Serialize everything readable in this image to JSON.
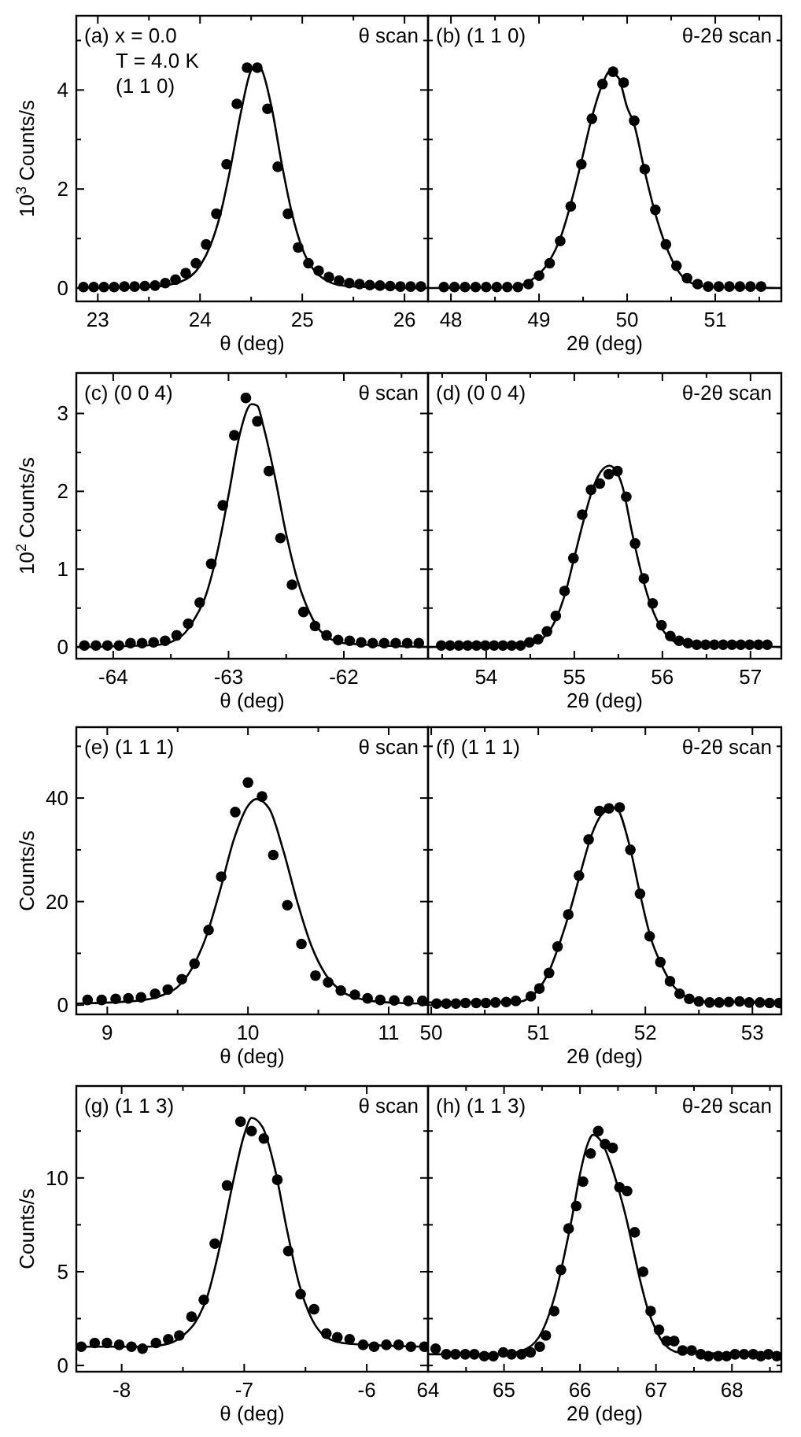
{
  "chart_data": [
    {
      "type": "scatter",
      "xlabel": "θ (deg)",
      "ylabel": "10$^{3}$ Counts/s",
      "annotations": [
        "(a) x = 0.0",
        "T = 4.0 K",
        "(1 1 0)",
        "θ scan"
      ],
      "xlim": [
        22.79,
        26.23
      ],
      "ylim": [
        -0.27,
        5.5
      ],
      "xticks": [
        23,
        {
          "value": 23.5,
          "label": null
        },
        24,
        {
          "value": 24.5,
          "label": null
        },
        25,
        {
          "value": 25.5,
          "label": null
        },
        26
      ],
      "yticks": [
        0,
        {
          "value": 1,
          "label": null
        },
        2,
        {
          "value": 3,
          "label": null
        },
        4,
        {
          "value": 5,
          "label": null
        }
      ],
      "series": [
        {
          "type": "line",
          "marker": "none",
          "color": "#000000",
          "x": [
            22.79,
            23.5,
            23.8,
            24.0,
            24.1,
            24.2,
            24.3,
            24.4,
            24.5,
            24.55,
            24.6,
            24.7,
            24.8,
            24.9,
            25.0,
            25.1,
            25.2,
            25.4,
            25.8,
            26.23
          ],
          "values": [
            0,
            0.02,
            0.12,
            0.45,
            0.85,
            1.5,
            2.45,
            3.55,
            4.4,
            4.5,
            4.42,
            3.65,
            2.5,
            1.5,
            0.8,
            0.4,
            0.2,
            0.05,
            0.01,
            0
          ]
        },
        {
          "marker": "circle",
          "color": "#000000",
          "x": [
            22.86,
            22.96,
            23.06,
            23.16,
            23.26,
            23.36,
            23.46,
            23.56,
            23.66,
            23.76,
            23.86,
            23.96,
            24.06,
            24.16,
            24.26,
            24.36,
            24.46,
            24.56,
            24.66,
            24.76,
            24.86,
            24.96,
            25.06,
            25.16,
            25.26,
            25.36,
            25.46,
            25.56,
            25.66,
            25.76,
            25.86,
            25.96,
            26.06,
            26.16
          ],
          "values": [
            0.02,
            0.02,
            0.02,
            0.02,
            0.03,
            0.03,
            0.04,
            0.05,
            0.1,
            0.17,
            0.3,
            0.5,
            0.88,
            1.5,
            2.5,
            3.72,
            4.45,
            4.45,
            3.62,
            2.45,
            1.5,
            0.82,
            0.5,
            0.35,
            0.22,
            0.15,
            0.1,
            0.08,
            0.06,
            0.05,
            0.04,
            0.03,
            0.03,
            0.03
          ]
        }
      ]
    },
    {
      "type": "scatter",
      "xlabel": "2θ (deg)",
      "annotations": [
        "(b) (1 1 0)",
        "θ-2θ scan"
      ],
      "tick_labels": "x",
      "xlim": [
        47.74,
        51.75
      ],
      "ylim": [
        -0.27,
        5.5
      ],
      "xticks": [
        48,
        {
          "value": 48.5,
          "label": null
        },
        49,
        {
          "value": 49.5,
          "label": null
        },
        50,
        {
          "value": 50.5,
          "label": null
        },
        51,
        {
          "value": 51.5,
          "label": null
        }
      ],
      "yticks": [
        {
          "value": 0,
          "label": null
        },
        {
          "value": 1,
          "label": null
        },
        {
          "value": 2,
          "label": null
        },
        {
          "value": 3,
          "label": null
        },
        {
          "value": 4,
          "label": null
        },
        {
          "value": 5,
          "label": null
        }
      ],
      "series": [
        {
          "type": "line",
          "marker": "none",
          "color": "#000000",
          "x": [
            47.74,
            48.7,
            48.9,
            49.0,
            49.12,
            49.24,
            49.36,
            49.48,
            49.6,
            49.72,
            49.8,
            49.9,
            50.0,
            50.08,
            50.2,
            50.32,
            50.44,
            50.56,
            50.68,
            50.9,
            51.75
          ],
          "values": [
            0,
            0.02,
            0.15,
            0.28,
            0.55,
            1.0,
            1.7,
            2.55,
            3.45,
            4.12,
            4.37,
            4.25,
            3.65,
            3.3,
            2.35,
            1.5,
            0.85,
            0.4,
            0.15,
            0.03,
            0
          ]
        },
        {
          "marker": "circle",
          "color": "#000000",
          "x": [
            47.92,
            48.04,
            48.16,
            48.28,
            48.4,
            48.52,
            48.64,
            48.76,
            48.88,
            49.0,
            49.12,
            49.24,
            49.36,
            49.48,
            49.6,
            49.72,
            49.84,
            49.96,
            50.08,
            50.2,
            50.32,
            50.44,
            50.56,
            50.68,
            50.8,
            50.92,
            51.04,
            51.16,
            51.28,
            51.4,
            51.52
          ],
          "values": [
            0.02,
            0.02,
            0.02,
            0.02,
            0.02,
            0.02,
            0.02,
            0.02,
            0.08,
            0.25,
            0.5,
            0.95,
            1.65,
            2.5,
            3.42,
            4.12,
            4.37,
            4.15,
            3.38,
            2.4,
            1.58,
            0.88,
            0.45,
            0.2,
            0.08,
            0.03,
            0.03,
            0.03,
            0.03,
            0.03,
            0.03
          ]
        }
      ]
    },
    {
      "type": "scatter",
      "xlabel": "θ (deg)",
      "ylabel": "10$^{2}$ Counts/s",
      "annotations": [
        "(c) (0 0 4)",
        "θ scan"
      ],
      "xlim": [
        -64.32,
        -61.27
      ],
      "ylim": [
        -0.15,
        3.52
      ],
      "xticks": [
        -64,
        {
          "value": -63.5,
          "label": null
        },
        -63,
        {
          "value": -62.5,
          "label": null
        },
        -62,
        {
          "value": -61.5,
          "label": null
        }
      ],
      "yticks": [
        0,
        {
          "value": 0.5,
          "label": null
        },
        1,
        {
          "value": 1.5,
          "label": null
        },
        2,
        {
          "value": 2.5,
          "label": null
        },
        3
      ],
      "series": [
        {
          "type": "line",
          "marker": "none",
          "color": "#000000",
          "x": [
            -64.32,
            -63.6,
            -63.4,
            -63.3,
            -63.2,
            -63.1,
            -63.0,
            -62.9,
            -62.8,
            -62.75,
            -62.7,
            -62.6,
            -62.5,
            -62.4,
            -62.3,
            -62.2,
            -62.0,
            -61.27
          ],
          "values": [
            0,
            0.03,
            0.15,
            0.35,
            0.65,
            1.2,
            1.95,
            2.75,
            3.12,
            3.1,
            2.85,
            2.2,
            1.45,
            0.85,
            0.45,
            0.2,
            0.05,
            0
          ]
        },
        {
          "marker": "circle",
          "color": "#000000",
          "x": [
            -64.25,
            -64.15,
            -64.05,
            -63.95,
            -63.85,
            -63.75,
            -63.65,
            -63.55,
            -63.45,
            -63.35,
            -63.25,
            -63.15,
            -63.05,
            -62.95,
            -62.85,
            -62.75,
            -62.65,
            -62.55,
            -62.45,
            -62.35,
            -62.25,
            -62.15,
            -62.05,
            -61.95,
            -61.85,
            -61.75,
            -61.65,
            -61.55,
            -61.45,
            -61.35
          ],
          "values": [
            0.02,
            0.02,
            0.02,
            0.02,
            0.05,
            0.05,
            0.06,
            0.08,
            0.15,
            0.3,
            0.57,
            1.07,
            1.82,
            2.72,
            3.2,
            2.9,
            2.26,
            1.4,
            0.8,
            0.45,
            0.27,
            0.15,
            0.09,
            0.08,
            0.06,
            0.05,
            0.05,
            0.05,
            0.05,
            0.05
          ]
        }
      ]
    },
    {
      "type": "scatter",
      "xlabel": "2θ (deg)",
      "annotations": [
        "(d) (0 0 4)",
        "θ-2θ scan"
      ],
      "tick_labels": "x",
      "xlim": [
        53.34,
        57.35
      ],
      "ylim": [
        -0.15,
        3.52
      ],
      "xticks": [
        {
          "value": 53.5,
          "label": null
        },
        54,
        {
          "value": 54.5,
          "label": null
        },
        55,
        {
          "value": 55.5,
          "label": null
        },
        56,
        {
          "value": 56.5,
          "label": null
        },
        57
      ],
      "yticks": [
        {
          "value": 0,
          "label": null
        },
        {
          "value": 0.5,
          "label": null
        },
        {
          "value": 1,
          "label": null
        },
        {
          "value": 1.5,
          "label": null
        },
        {
          "value": 2,
          "label": null
        },
        {
          "value": 2.5,
          "label": null
        },
        {
          "value": 3,
          "label": null
        }
      ],
      "series": [
        {
          "type": "line",
          "marker": "none",
          "color": "#000000",
          "x": [
            53.34,
            54.4,
            54.6,
            54.8,
            54.9,
            55.0,
            55.1,
            55.2,
            55.3,
            55.4,
            55.45,
            55.55,
            55.65,
            55.75,
            55.85,
            55.95,
            56.05,
            56.2,
            57.35
          ],
          "values": [
            0,
            0.02,
            0.08,
            0.38,
            0.7,
            1.15,
            1.6,
            2.0,
            2.25,
            2.33,
            2.3,
            2.05,
            1.5,
            1.0,
            0.6,
            0.32,
            0.15,
            0.05,
            0
          ]
        },
        {
          "marker": "circle",
          "color": "#000000",
          "x": [
            53.49,
            53.59,
            53.69,
            53.79,
            53.89,
            53.99,
            54.09,
            54.19,
            54.29,
            54.39,
            54.49,
            54.59,
            54.69,
            54.79,
            54.89,
            54.99,
            55.09,
            55.19,
            55.29,
            55.39,
            55.49,
            55.59,
            55.69,
            55.79,
            55.89,
            55.99,
            56.09,
            56.19,
            56.29,
            56.39,
            56.49,
            56.59,
            56.69,
            56.79,
            56.89,
            56.99,
            57.09,
            57.19
          ],
          "values": [
            0.02,
            0.02,
            0.02,
            0.02,
            0.02,
            0.02,
            0.02,
            0.02,
            0.02,
            0.02,
            0.06,
            0.1,
            0.2,
            0.4,
            0.72,
            1.14,
            1.7,
            2.02,
            2.1,
            2.22,
            2.26,
            1.93,
            1.33,
            0.88,
            0.56,
            0.28,
            0.14,
            0.08,
            0.05,
            0.03,
            0.03,
            0.03,
            0.03,
            0.03,
            0.03,
            0.03,
            0.03,
            0.03
          ]
        }
      ]
    },
    {
      "type": "scatter",
      "xlabel": "θ (deg)",
      "ylabel": "Counts/s",
      "annotations": [
        "(e) (1 1 1)",
        "θ scan"
      ],
      "xlim": [
        8.78,
        11.28
      ],
      "ylim": [
        -1.8,
        53.7
      ],
      "xticks": [
        9,
        {
          "value": 9.5,
          "label": null
        },
        10,
        {
          "value": 10.5,
          "label": null
        },
        11
      ],
      "yticks": [
        0,
        {
          "value": 10,
          "label": null
        },
        20,
        {
          "value": 30,
          "label": null
        },
        40,
        {
          "value": 50,
          "label": null
        }
      ],
      "series": [
        {
          "type": "line",
          "marker": "none",
          "color": "#000000",
          "x": [
            8.78,
            9.2,
            9.4,
            9.5,
            9.6,
            9.7,
            9.8,
            9.9,
            10.0,
            10.06,
            10.15,
            10.25,
            10.35,
            10.45,
            10.55,
            10.65,
            10.8,
            11.0,
            11.28
          ],
          "values": [
            0.3,
            0.8,
            2,
            3.5,
            7,
            13,
            22,
            32,
            38.5,
            39.8,
            38,
            30,
            20,
            11.5,
            6,
            3,
            1.2,
            0.5,
            0.3
          ]
        },
        {
          "marker": "circle",
          "color": "#000000",
          "x": [
            8.86,
            8.96,
            9.06,
            9.15,
            9.24,
            9.34,
            9.43,
            9.53,
            9.62,
            9.72,
            9.81,
            9.91,
            10.0,
            10.1,
            10.18,
            10.28,
            10.38,
            10.48,
            10.57,
            10.66,
            10.76,
            10.85,
            10.94,
            11.04,
            11.14,
            11.24
          ],
          "values": [
            1,
            1,
            1.2,
            1.3,
            1.5,
            2.2,
            3,
            5,
            8,
            14.5,
            24.8,
            37.3,
            43,
            40.3,
            29,
            19.3,
            11.8,
            5.7,
            4.4,
            2.8,
            2,
            1.3,
            1,
            0.9,
            0.8,
            0.8
          ]
        }
      ]
    },
    {
      "type": "scatter",
      "xlabel": "2θ (deg)",
      "annotations": [
        "(f) (1 1 1)",
        "θ-2θ scan"
      ],
      "tick_labels": "x",
      "xlim": [
        49.97,
        53.27
      ],
      "ylim": [
        -1.8,
        53.7
      ],
      "xticks": [
        50,
        {
          "value": 50.5,
          "label": null
        },
        51,
        {
          "value": 51.5,
          "label": null
        },
        52,
        {
          "value": 52.5,
          "label": null
        },
        53
      ],
      "yticks": [
        {
          "value": 0,
          "label": null
        },
        {
          "value": 10,
          "label": null
        },
        {
          "value": 20,
          "label": null
        },
        {
          "value": 30,
          "label": null
        },
        {
          "value": 40,
          "label": null
        },
        {
          "value": 50,
          "label": null
        }
      ],
      "series": [
        {
          "type": "line",
          "marker": "none",
          "color": "#000000",
          "x": [
            49.97,
            50.8,
            50.9,
            51.0,
            51.1,
            51.2,
            51.3,
            51.4,
            51.5,
            51.6,
            51.72,
            51.85,
            51.95,
            52.05,
            52.15,
            52.25,
            52.35,
            52.45,
            52.6,
            53.27
          ],
          "values": [
            0.5,
            0.6,
            1.2,
            3,
            6.5,
            12,
            18.5,
            26,
            33,
            37,
            38.2,
            31,
            21.5,
            13,
            7.8,
            4,
            2,
            1,
            0.6,
            0.5
          ]
        },
        {
          "marker": "circle",
          "color": "#000000",
          "x": [
            50.05,
            50.14,
            50.23,
            50.32,
            50.42,
            50.51,
            50.6,
            50.7,
            50.79,
            50.93,
            51.01,
            51.1,
            51.18,
            51.28,
            51.38,
            51.47,
            51.57,
            51.66,
            51.76,
            51.86,
            51.95,
            52.04,
            52.14,
            52.23,
            52.32,
            52.41,
            52.5,
            52.6,
            52.69,
            52.78,
            52.88,
            52.97,
            53.07,
            53.16,
            53.25
          ],
          "values": [
            0.3,
            0.3,
            0.3,
            0.4,
            0.4,
            0.4,
            0.5,
            0.6,
            0.8,
            1.7,
            3.2,
            6.2,
            11.3,
            17.5,
            25,
            32,
            37.5,
            38,
            38.2,
            30,
            21.5,
            13.3,
            8.3,
            4.6,
            2.2,
            1.2,
            0.7,
            0.5,
            0.5,
            0.6,
            0.7,
            0.5,
            0.5,
            0.4,
            0.4
          ]
        }
      ]
    },
    {
      "type": "scatter",
      "xlabel": "θ (deg)",
      "ylabel": "Counts/s",
      "annotations": [
        "(g) (1 1 3)",
        "θ scan"
      ],
      "xlim": [
        -8.37,
        -5.5
      ],
      "ylim": [
        -0.33,
        14.9
      ],
      "xticks": [
        -8,
        {
          "value": -7.5,
          "label": null
        },
        -7,
        {
          "value": -6.5,
          "label": null
        },
        -6
      ],
      "yticks": [
        0,
        {
          "value": 2.5,
          "label": null
        },
        5,
        {
          "value": 7.5,
          "label": null
        },
        10,
        {
          "value": 12.5,
          "label": null
        }
      ],
      "series": [
        {
          "type": "line",
          "marker": "none",
          "color": "#000000",
          "x": [
            -8.37,
            -7.8,
            -7.6,
            -7.5,
            -7.4,
            -7.3,
            -7.2,
            -7.1,
            -7.0,
            -6.94,
            -6.85,
            -6.75,
            -6.65,
            -6.55,
            -6.45,
            -6.35,
            -6.2,
            -6.0,
            -5.5
          ],
          "values": [
            1.0,
            1.0,
            1.2,
            1.6,
            2.3,
            3.7,
            6.3,
            9.5,
            12.3,
            13.2,
            12.7,
            10.5,
            7.2,
            4.3,
            2.5,
            1.6,
            1.2,
            1.1,
            1.0
          ]
        },
        {
          "marker": "circle",
          "color": "#000000",
          "x": [
            -8.33,
            -8.22,
            -8.12,
            -8.02,
            -7.92,
            -7.83,
            -7.72,
            -7.62,
            -7.53,
            -7.43,
            -7.33,
            -7.24,
            -7.14,
            -7.03,
            -6.94,
            -6.84,
            -6.73,
            -6.64,
            -6.54,
            -6.43,
            -6.33,
            -6.24,
            -6.14,
            -6.03,
            -5.94,
            -5.84,
            -5.74,
            -5.64,
            -5.53
          ],
          "values": [
            1.0,
            1.2,
            1.2,
            1.1,
            1.0,
            0.9,
            1.2,
            1.4,
            1.6,
            2.6,
            3.5,
            6.5,
            9.6,
            13.0,
            12.5,
            12.1,
            9.9,
            6.1,
            3.8,
            3.0,
            1.7,
            1.5,
            1.4,
            1.1,
            1.0,
            1.1,
            1.1,
            1.0,
            1.0
          ]
        }
      ]
    },
    {
      "type": "scatter",
      "xlabel": "2θ (deg)",
      "annotations": [
        "(h) (1 1 3)",
        "θ-2θ scan"
      ],
      "tick_labels": "x",
      "xlim": [
        64.0,
        68.65
      ],
      "ylim": [
        -0.33,
        14.9
      ],
      "xticks": [
        64,
        {
          "value": 64.5,
          "label": null
        },
        65,
        {
          "value": 65.5,
          "label": null
        },
        66,
        {
          "value": 66.5,
          "label": null
        },
        67,
        {
          "value": 67.5,
          "label": null
        },
        68,
        {
          "value": 68.5,
          "label": null
        }
      ],
      "yticks": [
        {
          "value": 0,
          "label": null
        },
        {
          "value": 2.5,
          "label": null
        },
        {
          "value": 5,
          "label": null
        },
        {
          "value": 7.5,
          "label": null
        },
        {
          "value": 10,
          "label": null
        },
        {
          "value": 12.5,
          "label": null
        }
      ],
      "series": [
        {
          "type": "line",
          "marker": "none",
          "color": "#000000",
          "x": [
            64.0,
            65.0,
            65.3,
            65.5,
            65.6,
            65.7,
            65.8,
            65.9,
            66.0,
            66.1,
            66.17,
            66.3,
            66.4,
            66.5,
            66.6,
            66.7,
            66.8,
            66.9,
            67.0,
            67.1,
            67.3,
            68.65
          ],
          "values": [
            0.6,
            0.6,
            0.9,
            1.8,
            2.8,
            4.2,
            6,
            8,
            10.2,
            11.8,
            12.3,
            11.8,
            10.8,
            9.5,
            8,
            6.2,
            4.4,
            2.9,
            1.9,
            1.2,
            0.7,
            0.6
          ]
        },
        {
          "marker": "circle",
          "color": "#000000",
          "x": [
            64.1,
            64.24,
            64.36,
            64.49,
            64.61,
            64.74,
            64.86,
            64.99,
            65.1,
            65.23,
            65.35,
            65.47,
            65.55,
            65.66,
            65.75,
            65.85,
            65.95,
            66.04,
            66.14,
            66.24,
            66.33,
            66.43,
            66.52,
            66.62,
            66.72,
            66.83,
            66.93,
            67.04,
            67.14,
            67.24,
            67.35,
            67.47,
            67.59,
            67.69,
            67.82,
            67.93,
            68.04,
            68.16,
            68.28,
            68.38,
            68.48,
            68.59
          ],
          "values": [
            0.9,
            0.6,
            0.6,
            0.6,
            0.6,
            0.5,
            0.5,
            0.7,
            0.6,
            0.6,
            0.7,
            1.0,
            1.6,
            2.9,
            5.1,
            7.3,
            8.5,
            9.8,
            11.3,
            12.5,
            11.8,
            11.6,
            9.5,
            9.3,
            7.1,
            5.0,
            2.9,
            1.9,
            1.3,
            1.3,
            0.8,
            0.8,
            0.6,
            0.5,
            0.5,
            0.5,
            0.6,
            0.6,
            0.6,
            0.5,
            0.6,
            0.5
          ]
        }
      ]
    }
  ]
}
